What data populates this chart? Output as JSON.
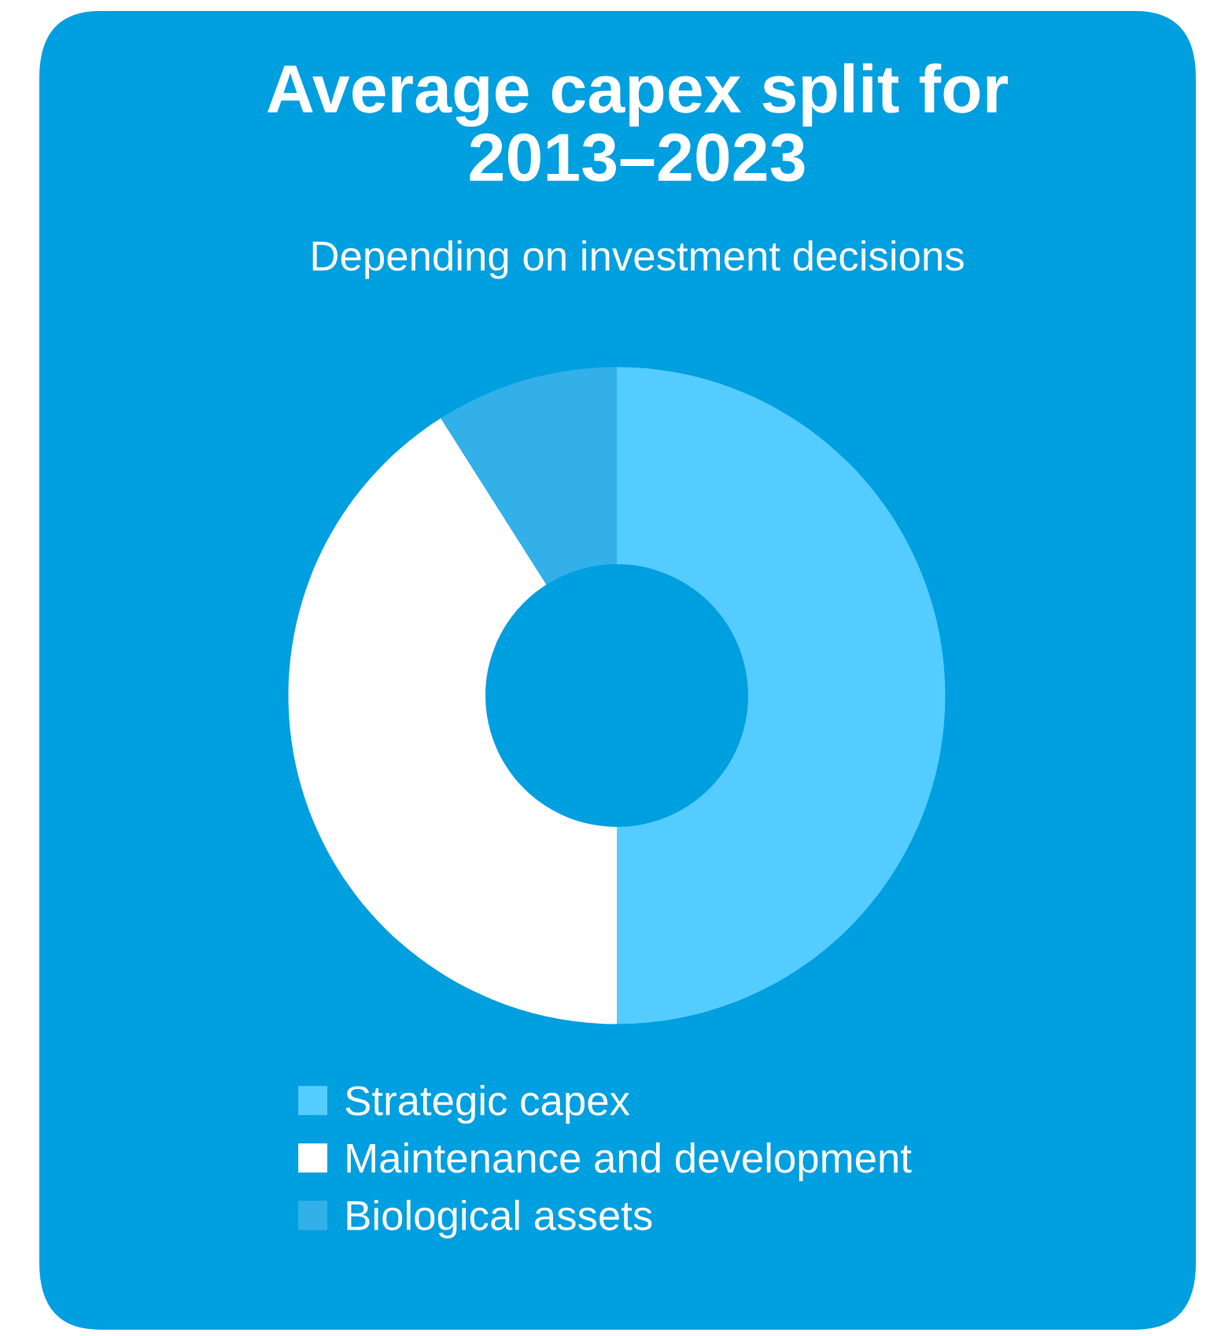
{
  "chart_data": {
    "type": "donut",
    "title": "Average capex split for\n2013–2023",
    "subtitle": "Depending on investment decisions",
    "categories": [
      "Strategic capex",
      "Maintenance and development",
      "Biological assets"
    ],
    "values": [
      50,
      41,
      9
    ],
    "colors": [
      "#55ccff",
      "#ffffff",
      "#33b0e8"
    ],
    "legend": "bottom"
  }
}
